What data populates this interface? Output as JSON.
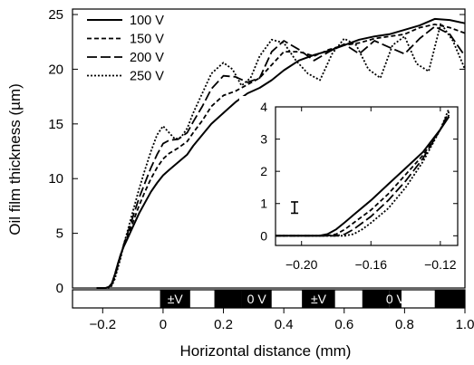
{
  "chart_data": [
    {
      "type": "line",
      "xlabel": "Horizontal distance (mm)",
      "ylabel": "Oil film thickness (µm)",
      "xlim": [
        -0.3,
        1.0
      ],
      "ylim": [
        0,
        25.5
      ],
      "x_ticks": [
        -0.2,
        0,
        0.2,
        0.4,
        0.6,
        0.8,
        1.0
      ],
      "x_tick_labels": [
        "−0.2",
        "0",
        "0.2",
        "0.4",
        "0.6",
        "0.8",
        "1.0"
      ],
      "y_ticks": [
        0,
        5,
        10,
        15,
        20,
        25
      ],
      "y_tick_labels": [
        "0",
        "5",
        "10",
        "15",
        "20",
        "25"
      ],
      "legend_position": "top-left",
      "series": [
        {
          "name": "100 V",
          "dash": "solid",
          "x": [
            -0.22,
            -0.2,
            -0.19,
            -0.18,
            -0.17,
            -0.16,
            -0.15,
            -0.14,
            -0.13,
            -0.12,
            -0.1,
            -0.08,
            -0.06,
            -0.04,
            -0.02,
            0,
            0.02,
            0.05,
            0.08,
            0.1,
            0.13,
            0.16,
            0.2,
            0.24,
            0.28,
            0.32,
            0.36,
            0.4,
            0.45,
            0.5,
            0.55,
            0.6,
            0.65,
            0.7,
            0.75,
            0.8,
            0.85,
            0.9,
            0.95,
            1.0
          ],
          "y": [
            0,
            0,
            0,
            0.1,
            0.4,
            1.2,
            2.2,
            3.1,
            3.8,
            4.4,
            5.6,
            6.8,
            7.8,
            8.8,
            9.6,
            10.3,
            10.8,
            11.5,
            12.2,
            13.0,
            14.0,
            15.0,
            16.0,
            17.0,
            17.8,
            18.3,
            19.0,
            19.9,
            20.8,
            21.3,
            21.7,
            22.2,
            22.7,
            23.0,
            23.2,
            23.6,
            24.0,
            24.6,
            24.5,
            24.2
          ]
        },
        {
          "name": "150 V",
          "dash": "short-dash",
          "x": [
            -0.22,
            -0.2,
            -0.19,
            -0.18,
            -0.17,
            -0.16,
            -0.15,
            -0.14,
            -0.13,
            -0.12,
            -0.1,
            -0.08,
            -0.06,
            -0.04,
            -0.02,
            0,
            0.02,
            0.05,
            0.08,
            0.1,
            0.13,
            0.16,
            0.2,
            0.24,
            0.28,
            0.32,
            0.36,
            0.4,
            0.45,
            0.5,
            0.55,
            0.6,
            0.65,
            0.7,
            0.75,
            0.8,
            0.85,
            0.9,
            0.95,
            1.0
          ],
          "y": [
            0,
            0,
            0,
            0.1,
            0.4,
            1.2,
            2.2,
            3.1,
            3.9,
            4.6,
            6.0,
            7.5,
            8.8,
            10.0,
            11.0,
            11.8,
            12.3,
            12.8,
            13.4,
            14.2,
            15.3,
            16.6,
            17.6,
            18.0,
            18.6,
            19.2,
            20.4,
            21.6,
            21.6,
            21.2,
            21.8,
            22.2,
            22.4,
            22.8,
            23.0,
            23.2,
            23.8,
            24.1,
            23.8,
            23.3
          ]
        },
        {
          "name": "200 V",
          "dash": "long-dash",
          "x": [
            -0.22,
            -0.2,
            -0.19,
            -0.18,
            -0.17,
            -0.16,
            -0.15,
            -0.14,
            -0.13,
            -0.12,
            -0.1,
            -0.08,
            -0.06,
            -0.04,
            -0.02,
            0,
            0.02,
            0.05,
            0.08,
            0.1,
            0.13,
            0.16,
            0.2,
            0.24,
            0.28,
            0.32,
            0.36,
            0.4,
            0.45,
            0.5,
            0.55,
            0.6,
            0.65,
            0.7,
            0.75,
            0.8,
            0.85,
            0.9,
            0.95,
            1.0
          ],
          "y": [
            0,
            0,
            0,
            0.05,
            0.3,
            1.0,
            2.0,
            3.0,
            4.0,
            4.8,
            6.5,
            8.2,
            9.6,
            11.0,
            12.2,
            13.2,
            13.5,
            13.6,
            14.2,
            15.2,
            16.6,
            18.2,
            19.4,
            19.3,
            18.8,
            19.2,
            21.6,
            22.6,
            21.8,
            20.8,
            21.6,
            22.3,
            21.4,
            22.6,
            22.0,
            21.4,
            22.8,
            23.9,
            23.2,
            21.2
          ]
        },
        {
          "name": "250 V",
          "dash": "dotted",
          "x": [
            -0.22,
            -0.2,
            -0.19,
            -0.18,
            -0.17,
            -0.16,
            -0.15,
            -0.14,
            -0.13,
            -0.12,
            -0.1,
            -0.08,
            -0.06,
            -0.04,
            -0.02,
            0,
            0.02,
            0.04,
            0.06,
            0.08,
            0.1,
            0.13,
            0.16,
            0.2,
            0.23,
            0.26,
            0.29,
            0.32,
            0.36,
            0.4,
            0.44,
            0.48,
            0.52,
            0.56,
            0.6,
            0.64,
            0.68,
            0.72,
            0.76,
            0.8,
            0.84,
            0.88,
            0.92,
            0.96,
            1.0
          ],
          "y": [
            0,
            0,
            0,
            0,
            0.2,
            0.8,
            1.8,
            2.8,
            4.0,
            5.0,
            7.0,
            9.0,
            10.8,
            12.5,
            14.0,
            14.8,
            14.2,
            13.6,
            13.8,
            14.6,
            16.0,
            17.8,
            19.6,
            20.6,
            20.0,
            18.5,
            19.2,
            21.2,
            22.7,
            22.4,
            20.8,
            19.6,
            19.0,
            21.4,
            22.8,
            22.2,
            20.0,
            19.2,
            22.2,
            23.0,
            20.5,
            19.8,
            24.2,
            22.6,
            20.0
          ]
        }
      ],
      "electrode_bar": {
        "labels": [
          "±V",
          "0 V",
          "±V",
          "0 V"
        ],
        "segments": [
          {
            "from": -0.3,
            "to": -0.01,
            "color": "#ffffff"
          },
          {
            "from": -0.01,
            "to": 0.09,
            "color": "#000000",
            "label": "±V"
          },
          {
            "from": 0.09,
            "to": 0.17,
            "color": "#ffffff"
          },
          {
            "from": 0.17,
            "to": 0.26,
            "color": "#000000"
          },
          {
            "from": 0.26,
            "to": 0.36,
            "color": "#000000",
            "label": "0 V"
          },
          {
            "from": 0.36,
            "to": 0.46,
            "color": "#ffffff"
          },
          {
            "from": 0.46,
            "to": 0.57,
            "color": "#000000",
            "label": "±V"
          },
          {
            "from": 0.57,
            "to": 0.66,
            "color": "#ffffff"
          },
          {
            "from": 0.66,
            "to": 0.75,
            "color": "#000000"
          },
          {
            "from": 0.75,
            "to": 0.79,
            "color": "#000000",
            "label": "0 V"
          },
          {
            "from": 0.79,
            "to": 0.9,
            "color": "#ffffff"
          },
          {
            "from": 0.9,
            "to": 1.0,
            "color": "#000000"
          }
        ]
      }
    },
    {
      "type": "line",
      "role": "inset",
      "xlim": [
        -0.215,
        -0.11
      ],
      "ylim": [
        -0.3,
        4
      ],
      "x_ticks": [
        -0.2,
        -0.16,
        -0.12
      ],
      "x_tick_labels": [
        "−0.20",
        "−0.16",
        "−0.12"
      ],
      "y_ticks": [
        0,
        1,
        2,
        3,
        4
      ],
      "y_tick_labels": [
        "0",
        "1",
        "2",
        "3",
        "4"
      ],
      "error_bar": {
        "x": -0.204,
        "y_low": 0.7,
        "y_high": 1.05
      },
      "series": [
        {
          "name": "100 V",
          "dash": "solid",
          "x": [
            -0.215,
            -0.19,
            -0.185,
            -0.18,
            -0.175,
            -0.17,
            -0.16,
            -0.15,
            -0.14,
            -0.13,
            -0.12,
            -0.115
          ],
          "y": [
            0,
            0,
            0.05,
            0.2,
            0.42,
            0.65,
            1.1,
            1.6,
            2.1,
            2.6,
            3.3,
            3.7
          ]
        },
        {
          "name": "150 V",
          "dash": "short-dash",
          "x": [
            -0.215,
            -0.185,
            -0.18,
            -0.175,
            -0.17,
            -0.165,
            -0.16,
            -0.15,
            -0.14,
            -0.13,
            -0.12,
            -0.115
          ],
          "y": [
            0,
            0,
            0.05,
            0.2,
            0.4,
            0.6,
            0.8,
            1.3,
            1.9,
            2.5,
            3.3,
            3.75
          ]
        },
        {
          "name": "200 V",
          "dash": "long-dash",
          "x": [
            -0.215,
            -0.18,
            -0.175,
            -0.17,
            -0.165,
            -0.16,
            -0.15,
            -0.14,
            -0.13,
            -0.12,
            -0.115
          ],
          "y": [
            0,
            0,
            0.05,
            0.2,
            0.4,
            0.6,
            1.1,
            1.7,
            2.4,
            3.3,
            3.85
          ]
        },
        {
          "name": "250 V",
          "dash": "dotted",
          "x": [
            -0.215,
            -0.175,
            -0.17,
            -0.165,
            -0.16,
            -0.15,
            -0.14,
            -0.13,
            -0.12,
            -0.115
          ],
          "y": [
            0,
            0,
            0.05,
            0.2,
            0.4,
            0.85,
            1.5,
            2.3,
            3.3,
            3.95
          ]
        }
      ]
    }
  ]
}
